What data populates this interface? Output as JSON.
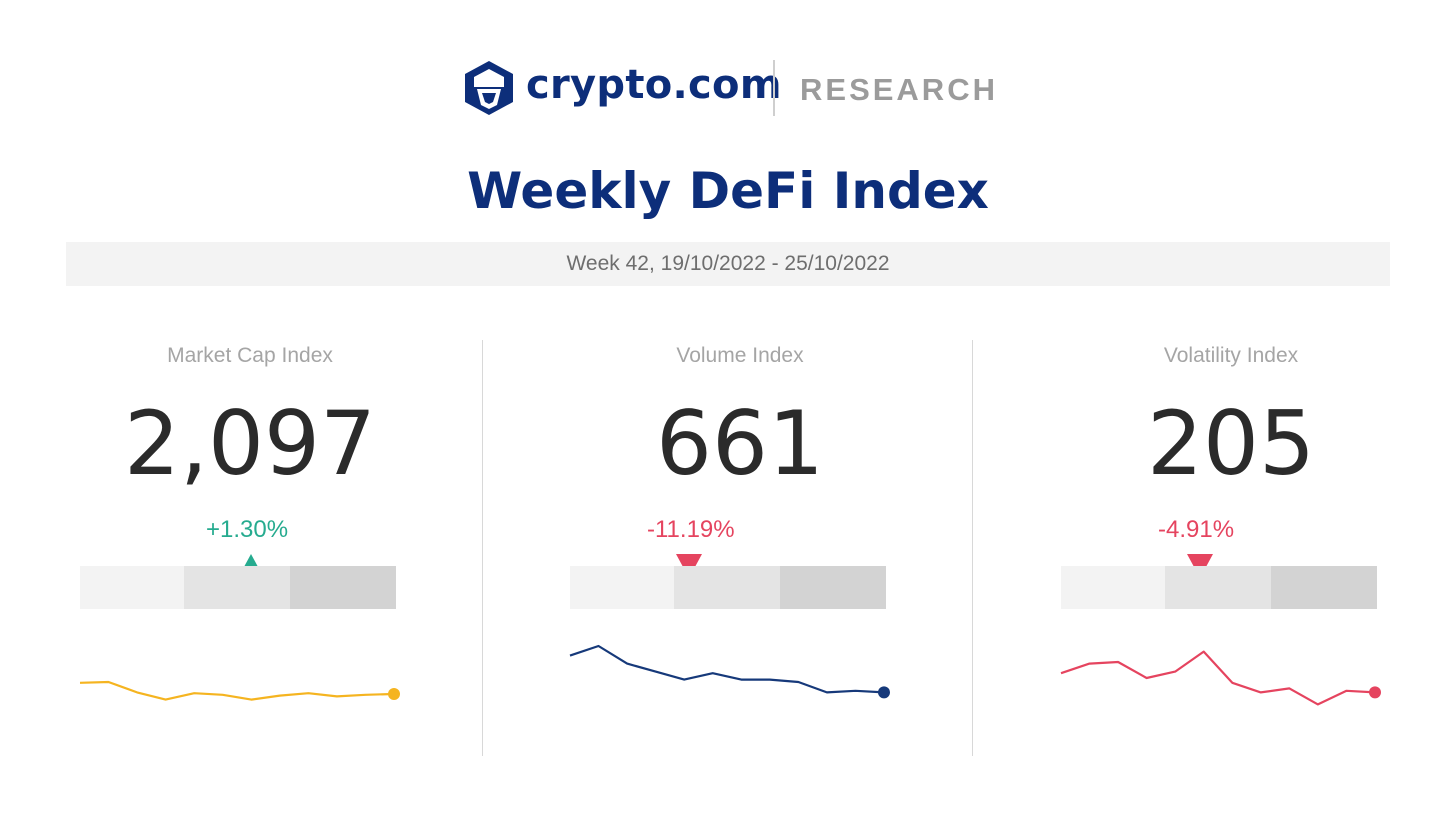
{
  "header": {
    "brand": "crypto.com",
    "section": "RESEARCH",
    "logo_icon": "lion-shield-logo-icon",
    "brand_color": "#0d2e7a"
  },
  "title": "Weekly DeFi Index",
  "week": "Week 42, 19/10/2022 - 25/10/2022",
  "chart_data": [
    {
      "type": "line",
      "label": "Market Cap Index",
      "value": "2,097",
      "change": "+1.30%",
      "direction": "up",
      "change_color": "#26ab8f",
      "marker_level": 0.54,
      "line_color": "#f5b420",
      "y": [
        54,
        55,
        42,
        33,
        41,
        39,
        33,
        38,
        41,
        37,
        39,
        40
      ],
      "ylim": [
        0,
        100
      ]
    },
    {
      "type": "line",
      "label": "Volume Index",
      "value": "661",
      "change": "-11.19%",
      "direction": "down",
      "change_color": "#e5445f",
      "marker_level": 0.375,
      "line_color": "#16397a",
      "y": [
        88,
        100,
        78,
        68,
        58,
        66,
        58,
        58,
        55,
        42,
        44,
        42
      ],
      "ylim": [
        0,
        100
      ]
    },
    {
      "type": "line",
      "label": "Volatility Index",
      "value": "205",
      "change": "-4.91%",
      "direction": "down",
      "change_color": "#e5445f",
      "marker_level": 0.44,
      "line_color": "#e5445f",
      "y": [
        66,
        78,
        80,
        60,
        68,
        93,
        54,
        42,
        47,
        27,
        44,
        42
      ],
      "ylim": [
        0,
        100
      ]
    }
  ]
}
